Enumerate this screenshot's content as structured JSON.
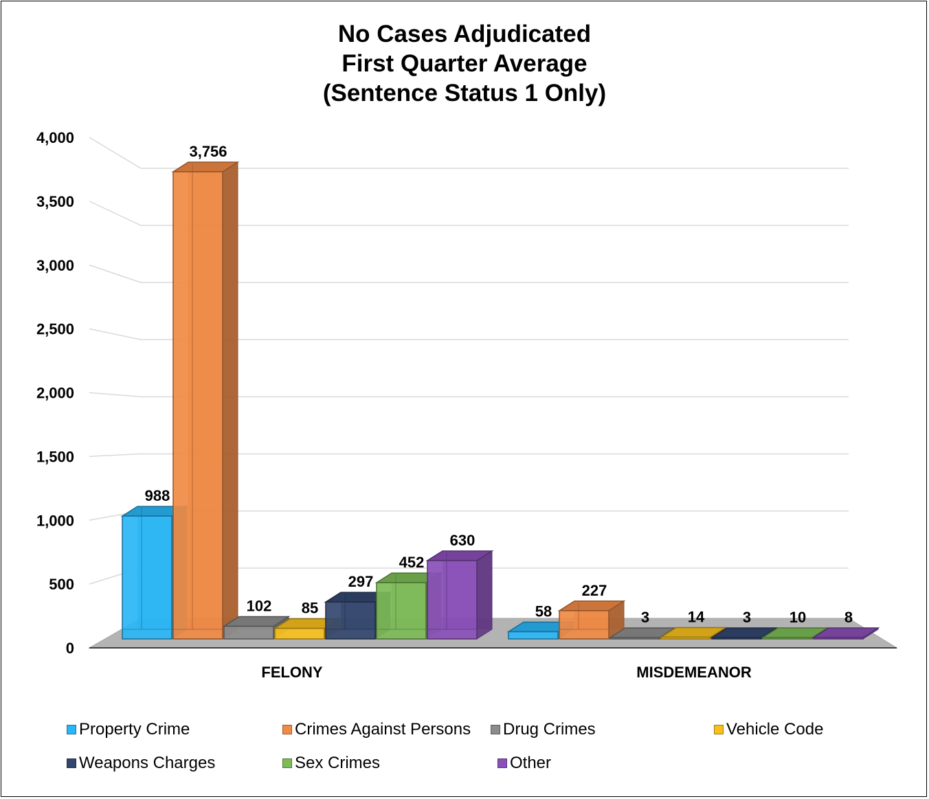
{
  "chart_data": {
    "type": "bar",
    "title_lines": [
      "No Cases Adjudicated",
      "First Quarter Average",
      "(Sentence Status 1 Only)"
    ],
    "categories": [
      "FELONY",
      "MISDEMEANOR"
    ],
    "series": [
      {
        "name": "Property Crime",
        "color": "#29B6F6",
        "values": [
          988,
          58
        ],
        "labels": [
          "988",
          "58"
        ]
      },
      {
        "name": "Crimes Against Persons",
        "color": "#F08A44",
        "values": [
          3756,
          227
        ],
        "labels": [
          "3,756",
          "227"
        ]
      },
      {
        "name": "Drug Crimes",
        "color": "#8C8C8C",
        "values": [
          102,
          3
        ],
        "labels": [
          "102",
          "3"
        ]
      },
      {
        "name": "Vehicle Code",
        "color": "#F7C01C",
        "values": [
          85,
          14
        ],
        "labels": [
          "85",
          "14"
        ]
      },
      {
        "name": "Weapons Charges",
        "color": "#33466E",
        "values": [
          297,
          3
        ],
        "labels": [
          "297",
          "3"
        ]
      },
      {
        "name": "Sex Crimes",
        "color": "#7DBB57",
        "values": [
          452,
          10
        ],
        "labels": [
          "452",
          "10"
        ]
      },
      {
        "name": "Other",
        "color": "#8A4FB8",
        "values": [
          630,
          8
        ],
        "labels": [
          "630",
          "8"
        ]
      }
    ],
    "y_ticks": [
      0,
      500,
      1000,
      1500,
      2000,
      2500,
      3000,
      3500,
      4000
    ],
    "y_tick_labels": [
      "0",
      "500",
      "1,000",
      "1,500",
      "2,000",
      "2,500",
      "3,000",
      "3,500",
      "4,000"
    ],
    "ylim": [
      0,
      4000
    ],
    "grid": true,
    "legend_position": "bottom",
    "xlabel": "",
    "ylabel": ""
  }
}
